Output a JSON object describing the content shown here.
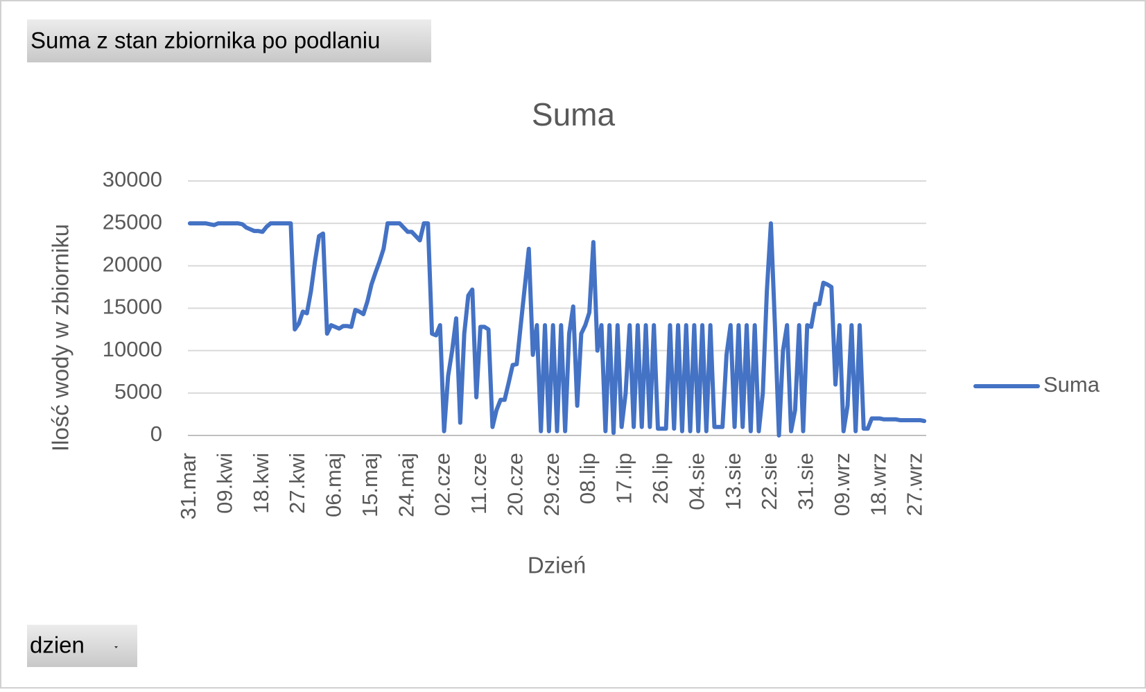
{
  "field_buttons": {
    "value_field": "Suma z stan zbiornika po podlaniu",
    "axis_field": "dzien"
  },
  "chart_data": {
    "type": "line",
    "title": "Suma",
    "x_label": "Dzień",
    "y_label": "Ilość wody w zbiorniku",
    "categories": [
      "31.mar",
      null,
      null,
      null,
      null,
      null,
      null,
      null,
      null,
      "09.kwi",
      null,
      null,
      null,
      null,
      null,
      null,
      null,
      null,
      "18.kwi",
      null,
      null,
      null,
      null,
      null,
      null,
      null,
      null,
      "27.kwi",
      null,
      null,
      null,
      null,
      null,
      null,
      null,
      null,
      "06.maj",
      null,
      null,
      null,
      null,
      null,
      null,
      null,
      null,
      "15.maj",
      null,
      null,
      null,
      null,
      null,
      null,
      null,
      null,
      "24.maj",
      null,
      null,
      null,
      null,
      null,
      null,
      null,
      null,
      "02.cze",
      null,
      null,
      null,
      null,
      null,
      null,
      null,
      null,
      "11.cze",
      null,
      null,
      null,
      null,
      null,
      null,
      null,
      null,
      "20.cze",
      null,
      null,
      null,
      null,
      null,
      null,
      null,
      null,
      "29.cze",
      null,
      null,
      null,
      null,
      null,
      null,
      null,
      null,
      "08.lip",
      null,
      null,
      null,
      null,
      null,
      null,
      null,
      null,
      "17.lip",
      null,
      null,
      null,
      null,
      null,
      null,
      null,
      null,
      "26.lip",
      null,
      null,
      null,
      null,
      null,
      null,
      null,
      null,
      "04.sie",
      null,
      null,
      null,
      null,
      null,
      null,
      null,
      null,
      "13.sie",
      null,
      null,
      null,
      null,
      null,
      null,
      null,
      null,
      "22.sie",
      null,
      null,
      null,
      null,
      null,
      null,
      null,
      null,
      "31.sie",
      null,
      null,
      null,
      null,
      null,
      null,
      null,
      null,
      "09.wrz",
      null,
      null,
      null,
      null,
      null,
      null,
      null,
      null,
      "18.wrz",
      null,
      null,
      null,
      null,
      null,
      null,
      null,
      null,
      "27.wrz",
      null,
      null
    ],
    "series": [
      {
        "name": "Suma",
        "color": "#4472c4",
        "values": [
          25000,
          25000,
          25000,
          25000,
          25000,
          24900,
          24800,
          25000,
          25000,
          25000,
          25000,
          25000,
          25000,
          24900,
          24500,
          24300,
          24100,
          24100,
          24000,
          24600,
          25000,
          25000,
          25000,
          25000,
          25000,
          25000,
          12500,
          13200,
          14600,
          14400,
          17000,
          20500,
          23500,
          23800,
          12000,
          13000,
          12800,
          12600,
          12900,
          12900,
          12800,
          14800,
          14600,
          14300,
          15800,
          17800,
          19200,
          20500,
          22000,
          25000,
          25000,
          25000,
          25000,
          24500,
          24000,
          24000,
          23500,
          23000,
          25000,
          25000,
          12000,
          11800,
          13000,
          500,
          7000,
          10000,
          13800,
          1500,
          12000,
          16500,
          17200,
          4500,
          12800,
          12800,
          12500,
          1000,
          3000,
          4200,
          4200,
          6200,
          8300,
          8400,
          13000,
          17500,
          22000,
          9500,
          13000,
          500,
          13000,
          500,
          13000,
          500,
          13000,
          500,
          12000,
          15200,
          3500,
          12000,
          13000,
          14500,
          22800,
          10000,
          13000,
          500,
          13000,
          300,
          13000,
          1000,
          5000,
          13000,
          1000,
          13000,
          1000,
          13000,
          1000,
          13000,
          800,
          800,
          800,
          13000,
          800,
          13000,
          500,
          13000,
          500,
          13000,
          500,
          13000,
          500,
          13000,
          1000,
          1000,
          1000,
          9500,
          13000,
          1000,
          13000,
          1000,
          13000,
          500,
          13000,
          500,
          5000,
          17000,
          25000,
          13000,
          0,
          10000,
          13000,
          500,
          3000,
          13000,
          500,
          13000,
          12800,
          15500,
          15500,
          18000,
          17800,
          17500,
          6000,
          13000,
          500,
          3500,
          13000,
          500,
          13000,
          800,
          800,
          2000,
          2000,
          2000,
          1900,
          1900,
          1900,
          1900,
          1800,
          1800,
          1800,
          1800,
          1800,
          1800,
          1700
        ]
      }
    ],
    "ylim": [
      0,
      30000
    ],
    "yticks": [
      0,
      5000,
      10000,
      15000,
      20000,
      25000,
      30000
    ],
    "grid": true,
    "legend": "right"
  }
}
